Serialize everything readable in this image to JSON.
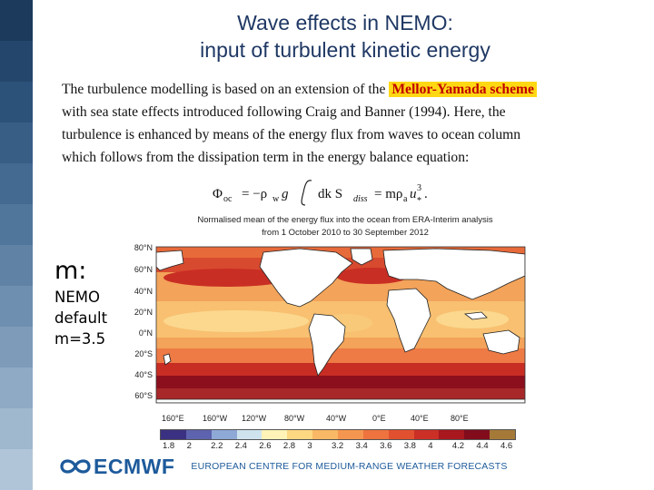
{
  "title": {
    "line1": "Wave effects in NEMO:",
    "line2": "input of turbulent kinetic energy"
  },
  "paragraph": {
    "line1_pre": "The turbulence modelling is based on an extension of the",
    "highlight": "Mellor-Yamada scheme",
    "line2": "with sea state effects introduced following Craig and Banner (1994). Here, the",
    "line3": "turbulence is enhanced by means of the energy flux from waves to ocean column",
    "line4": "which follows from the dissipation term in the energy balance equation:"
  },
  "equation": {
    "lhs": "Φ",
    "lhs_sub": "oc",
    "eq": "= −ρ",
    "rho_sub": "w",
    "g": "g",
    "integrand": "dk S",
    "s_sub": "diss",
    "rhs": "= mρ",
    "rhs_sub": "a",
    "u": "u",
    "u_sup": "3",
    "u_sub": "*",
    "end": "."
  },
  "m_label": {
    "heading": "m:",
    "line1": "NEMO",
    "line2": "default",
    "line3": "m=3.5"
  },
  "figure": {
    "caption_line1": "Normalised mean of the energy flux into the ocean from ERA-Interim analysis",
    "caption_line2": "from 1 October 2010 to 30 September 2012",
    "lat_labels": [
      "80°N",
      "60°N",
      "40°N",
      "20°N",
      "0°N",
      "20°S",
      "40°S",
      "60°S"
    ],
    "lon_labels": [
      "160°E",
      "160°W",
      "120°W",
      "80°W",
      "40°W",
      "0°E",
      "40°E",
      "80°E"
    ],
    "colorbar_ticks": [
      "1.8",
      "2",
      "2.2",
      "2.4",
      "2.6",
      "2.8",
      "3",
      "3.2",
      "3.4",
      "3.6",
      "3.8",
      "4",
      "4.2",
      "4.4",
      "4.6"
    ],
    "colorbar_colors": [
      "#3b3182",
      "#5d63ae",
      "#8fa9d6",
      "#cfe3ef",
      "#fff3b8",
      "#fcd882",
      "#f9b865",
      "#f59650",
      "#ee733f",
      "#e2512f",
      "#cb2f25",
      "#a9171f",
      "#820c1c",
      "#a57a38"
    ]
  },
  "footer": {
    "logo": "ECMWF",
    "centre": "EUROPEAN CENTRE FOR MEDIUM-RANGE WEATHER FORECASTS"
  },
  "colors": {
    "title": "#1f3864",
    "highlight_bg": "#ffd814",
    "highlight_text": "#c00000",
    "ecmwf_blue": "#1d5a9b",
    "sidebar": [
      "#1b3a5c",
      "#24466c",
      "#2d527a",
      "#385e86",
      "#446a91",
      "#51769b",
      "#5f82a5",
      "#6e8fb0",
      "#7e9cba",
      "#8eaac4",
      "#9fb8ce",
      "#b0c6d8"
    ]
  }
}
